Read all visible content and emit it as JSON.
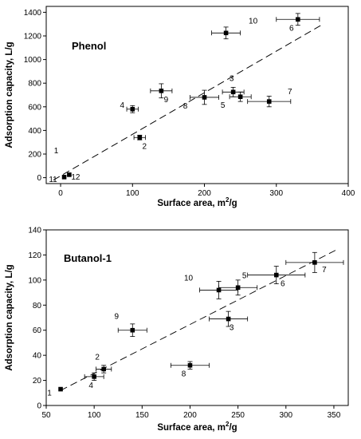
{
  "chart_data": [
    {
      "type": "scatter",
      "title": "Phenol",
      "xlabel_base": "Surface area, m",
      "xlabel_sup": "2",
      "xlabel_tail": "/g",
      "ylabel": "Adsorption capacity, L/g",
      "xlim": [
        -20,
        400
      ],
      "ylim": [
        -50,
        1450
      ],
      "xticks": [
        0,
        100,
        200,
        300,
        400
      ],
      "yticks": [
        0,
        200,
        400,
        600,
        800,
        1000,
        1200,
        1400
      ],
      "grid": false,
      "points": [
        {
          "label": "1",
          "x": 5,
          "y": 5,
          "xerr": 0,
          "yerr": 0
        },
        {
          "label": "2",
          "x": 110,
          "y": 340,
          "xerr": 8,
          "yerr": 20
        },
        {
          "label": "3",
          "x": 240,
          "y": 725,
          "xerr": 15,
          "yerr": 40
        },
        {
          "label": "4",
          "x": 100,
          "y": 580,
          "xerr": 8,
          "yerr": 30
        },
        {
          "label": "5",
          "x": 250,
          "y": 685,
          "xerr": 15,
          "yerr": 40
        },
        {
          "label": "6",
          "x": 330,
          "y": 1340,
          "xerr": 30,
          "yerr": 50
        },
        {
          "label": "7",
          "x": 290,
          "y": 645,
          "xerr": 30,
          "yerr": 45
        },
        {
          "label": "8",
          "x": 200,
          "y": 680,
          "xerr": 20,
          "yerr": 60
        },
        {
          "label": "9",
          "x": 140,
          "y": 735,
          "xerr": 15,
          "yerr": 60
        },
        {
          "label": "10",
          "x": 230,
          "y": 1225,
          "xerr": 20,
          "yerr": 50
        },
        {
          "label": "11",
          "x": 5,
          "y": 5,
          "xerr": 0,
          "yerr": 0
        },
        {
          "label": "12",
          "x": 12,
          "y": 25,
          "xerr": 0,
          "yerr": 0
        }
      ],
      "fit_line": {
        "x": [
          -10,
          365
        ],
        "y": [
          -20,
          1300
        ]
      }
    },
    {
      "type": "scatter",
      "title": "Butanol-1",
      "xlabel_base": "Surface area, m",
      "xlabel_sup": "2",
      "xlabel_tail": "/g",
      "ylabel": "Adsorption capacity, L/g",
      "xlim": [
        50,
        365
      ],
      "ylim": [
        0,
        140
      ],
      "xticks": [
        50,
        100,
        150,
        200,
        250,
        300,
        350
      ],
      "yticks": [
        0,
        20,
        40,
        60,
        80,
        100,
        120,
        140
      ],
      "grid": false,
      "points": [
        {
          "label": "1",
          "x": 65,
          "y": 13,
          "xerr": 0,
          "yerr": 0
        },
        {
          "label": "2",
          "x": 110,
          "y": 29,
          "xerr": 8,
          "yerr": 3
        },
        {
          "label": "3",
          "x": 240,
          "y": 69,
          "xerr": 20,
          "yerr": 6
        },
        {
          "label": "4",
          "x": 100,
          "y": 23,
          "xerr": 10,
          "yerr": 3
        },
        {
          "label": "5",
          "x": 250,
          "y": 94,
          "xerr": 20,
          "yerr": 6
        },
        {
          "label": "6",
          "x": 290,
          "y": 104,
          "xerr": 30,
          "yerr": 7
        },
        {
          "label": "7",
          "x": 330,
          "y": 114,
          "xerr": 30,
          "yerr": 8
        },
        {
          "label": "8",
          "x": 200,
          "y": 32,
          "xerr": 20,
          "yerr": 3
        },
        {
          "label": "9",
          "x": 140,
          "y": 60,
          "xerr": 15,
          "yerr": 5
        },
        {
          "label": "10",
          "x": 230,
          "y": 92,
          "xerr": 20,
          "yerr": 7
        }
      ],
      "fit_line": {
        "x": [
          65,
          355
        ],
        "y": [
          12,
          125
        ]
      }
    }
  ]
}
